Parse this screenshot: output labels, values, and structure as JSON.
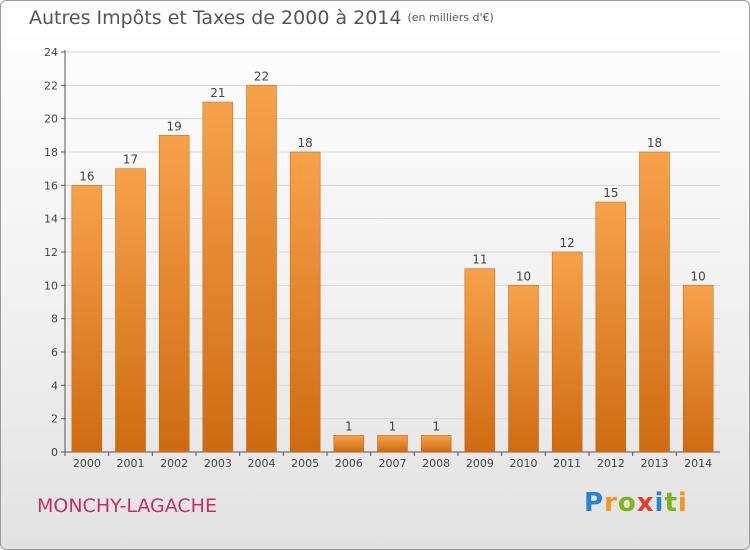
{
  "title": "Autres Impôts et Taxes de 2000 à 2014",
  "subtitle": "(en milliers d'€)",
  "commune": "MONCHY-LAGACHE",
  "logo": {
    "letters": [
      "P",
      "r",
      "o",
      "x",
      "i",
      "t",
      "i"
    ],
    "colors": [
      "#2a83c8",
      "#f29620",
      "#7ab51d",
      "#e23c2f",
      "#2a83c8",
      "#7ab51d",
      "#f29620"
    ]
  },
  "colors": {
    "bar_top": "#f7a24a",
    "bar_bottom": "#cf6a12",
    "grid": "#d6d6d6"
  },
  "chart_data": {
    "type": "bar",
    "categories": [
      "2000",
      "2001",
      "2002",
      "2003",
      "2004",
      "2005",
      "2006",
      "2007",
      "2008",
      "2009",
      "2010",
      "2011",
      "2012",
      "2013",
      "2014"
    ],
    "values": [
      16,
      17,
      19,
      21,
      22,
      18,
      1,
      1,
      1,
      11,
      10,
      12,
      15,
      18,
      10
    ],
    "ylim": [
      0,
      24
    ],
    "yticks": [
      0,
      2,
      4,
      6,
      8,
      10,
      12,
      14,
      16,
      18,
      20,
      22,
      24
    ],
    "grid": true,
    "data_labels": true
  }
}
